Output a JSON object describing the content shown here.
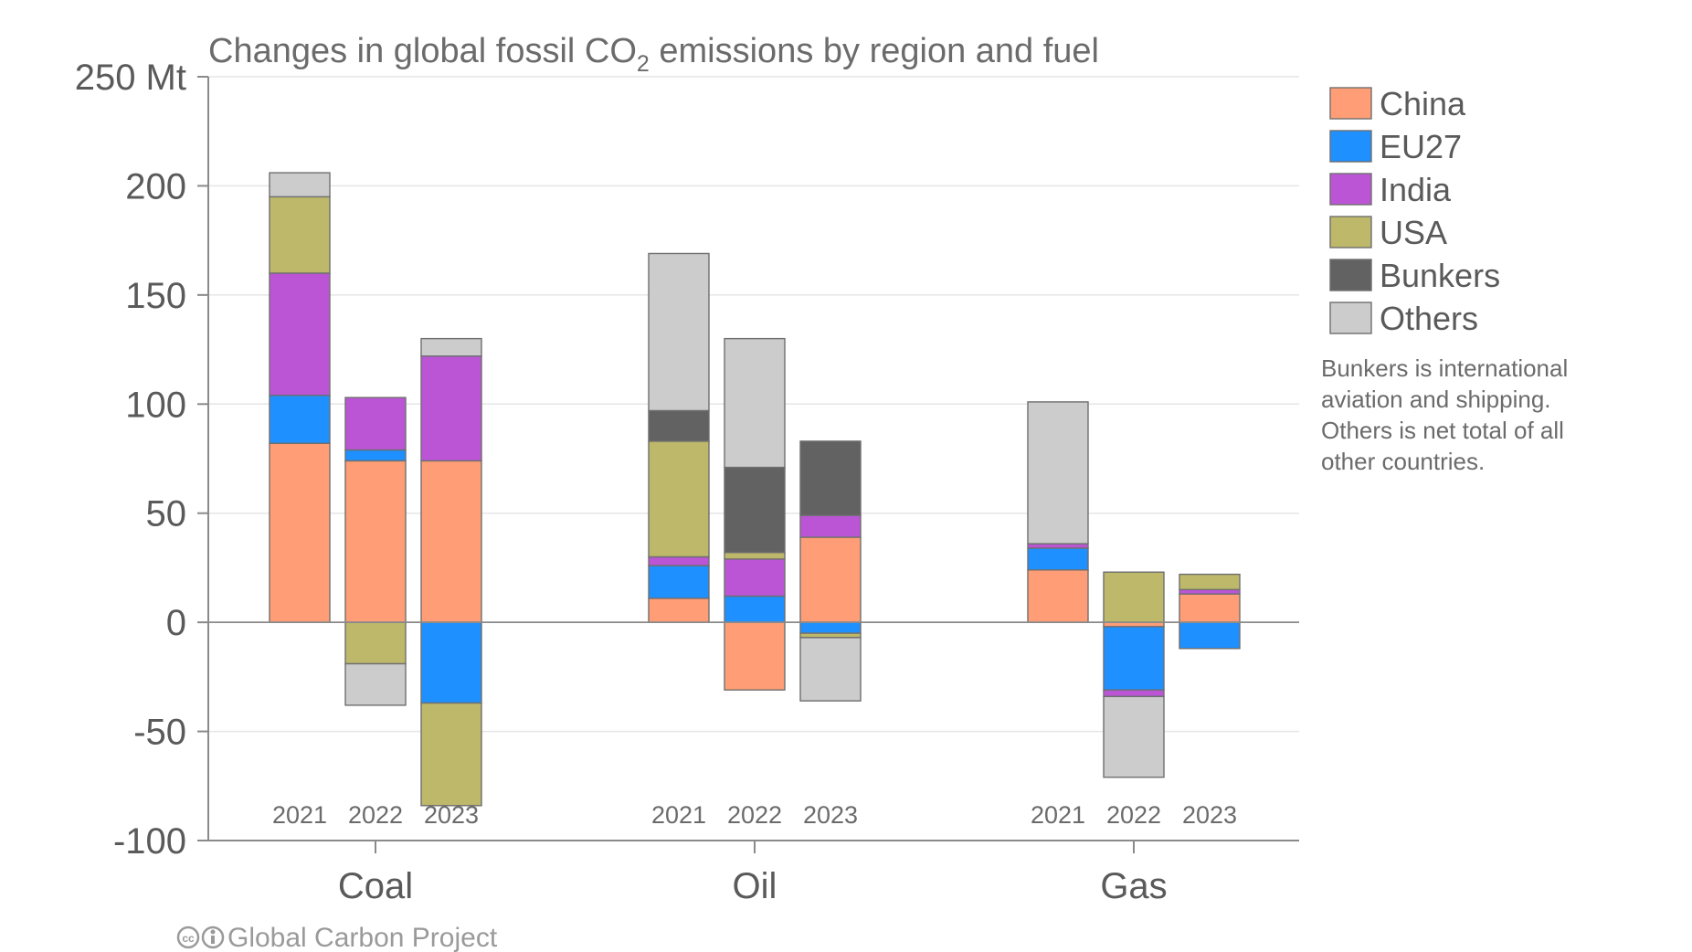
{
  "chart_data": {
    "type": "bar",
    "stacked": true,
    "title_main": "Changes in global fossil CO",
    "title_sub": "2",
    "title_rest": " emissions by region and fuel",
    "y_unit_label": "250 Mt",
    "ylim": [
      -100,
      250
    ],
    "y_ticks": [
      {
        "value": 250,
        "label": "250 Mt"
      },
      {
        "value": 200,
        "label": "200"
      },
      {
        "value": 150,
        "label": "150"
      },
      {
        "value": 100,
        "label": "100"
      },
      {
        "value": 50,
        "label": "50"
      },
      {
        "value": 0,
        "label": "0"
      },
      {
        "value": -50,
        "label": "-50"
      },
      {
        "value": -100,
        "label": "-100"
      }
    ],
    "grid": true,
    "groups": [
      "Coal",
      "Oil",
      "Gas"
    ],
    "years": [
      "2021",
      "2022",
      "2023"
    ],
    "series": [
      {
        "name": "China",
        "color": "#ff9e76",
        "values": {
          "Coal": [
            82,
            74,
            74
          ],
          "Oil": [
            11,
            -31,
            39
          ],
          "Gas": [
            24,
            -2,
            13
          ]
        }
      },
      {
        "name": "EU27",
        "color": "#1e90ff",
        "values": {
          "Coal": [
            22,
            5,
            -37
          ],
          "Oil": [
            15,
            12,
            -5
          ],
          "Gas": [
            10,
            -29,
            -12
          ]
        }
      },
      {
        "name": "India",
        "color": "#bb55d6",
        "values": {
          "Coal": [
            56,
            24,
            48
          ],
          "Oil": [
            4,
            17,
            10
          ],
          "Gas": [
            2,
            -3,
            2
          ]
        }
      },
      {
        "name": "USA",
        "color": "#bdb86a",
        "values": {
          "Coal": [
            35,
            -19,
            -47
          ],
          "Oil": [
            53,
            3,
            -2
          ],
          "Gas": [
            0,
            23,
            7
          ]
        }
      },
      {
        "name": "Bunkers",
        "color": "#626262",
        "values": {
          "Coal": [
            0,
            0,
            0
          ],
          "Oil": [
            14,
            39,
            34
          ],
          "Gas": [
            0,
            0,
            0
          ]
        }
      },
      {
        "name": "Others",
        "color": "#cccccc",
        "values": {
          "Coal": [
            11,
            -19,
            8
          ],
          "Oil": [
            72,
            59,
            -29
          ],
          "Gas": [
            65,
            -37,
            0
          ]
        }
      }
    ],
    "legend_position": "right",
    "note": [
      "Bunkers is international",
      "aviation and shipping.",
      "Others is net total of all",
      "other countries."
    ],
    "credit": "Global Carbon Project"
  }
}
